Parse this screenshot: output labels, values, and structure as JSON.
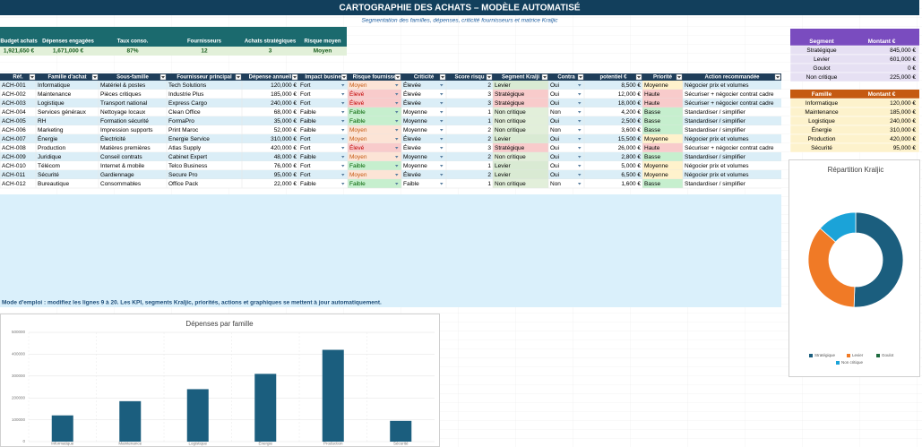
{
  "header": {
    "title": "CARTOGRAPHIE DES ACHATS – MODÈLE AUTOMATISÉ",
    "subtitle": "Segmentation des familles, dépenses, criticité fournisseurs et matrice Kraljic"
  },
  "kpis": {
    "headers": [
      "Budget achats",
      "Dépenses engagées",
      "Taux conso.",
      "Fournisseurs",
      "Achats stratégiques",
      "Risque moyen"
    ],
    "values": [
      "1,921,650 €",
      "1,671,000 €",
      "87%",
      "12",
      "3",
      "Moyen"
    ]
  },
  "main_table": {
    "headers": [
      "Réf.",
      "Famille d'achat",
      "Sous-famille",
      "Fournisseur principal",
      "Dépense annuell",
      "Impact busine",
      "Risque fournisse",
      "Criticité",
      "Score risqu",
      "Segment Kralji",
      "Contra",
      "potentiel €",
      "Priorité",
      "Action recommandée"
    ],
    "rows": [
      [
        "ACH-001",
        "Informatique",
        "Matériel & postes",
        "Tech Solutions",
        "120,000 €",
        "Fort",
        "Moyen",
        "Élevée",
        "2",
        "Levier",
        "Oui",
        "8,500 €",
        "Moyenne",
        "Négocier prix et volumes"
      ],
      [
        "ACH-002",
        "Maintenance",
        "Pièces critiques",
        "Industrie Plus",
        "185,000 €",
        "Fort",
        "Élevé",
        "Élevée",
        "3",
        "Stratégique",
        "Oui",
        "12,000 €",
        "Haute",
        "Sécuriser + négocier contrat cadre"
      ],
      [
        "ACH-003",
        "Logistique",
        "Transport national",
        "Express Cargo",
        "240,000 €",
        "Fort",
        "Élevé",
        "Élevée",
        "3",
        "Stratégique",
        "Oui",
        "18,000 €",
        "Haute",
        "Sécuriser + négocier contrat cadre"
      ],
      [
        "ACH-004",
        "Services généraux",
        "Nettoyage locaux",
        "Clean Office",
        "68,000 €",
        "Faible",
        "Faible",
        "Moyenne",
        "1",
        "Non critique",
        "Non",
        "4,200 €",
        "Basse",
        "Standardiser / simplifier"
      ],
      [
        "ACH-005",
        "RH",
        "Formation sécurité",
        "FormaPro",
        "35,000 €",
        "Faible",
        "Faible",
        "Moyenne",
        "1",
        "Non critique",
        "Oui",
        "2,500 €",
        "Basse",
        "Standardiser / simplifier"
      ],
      [
        "ACH-006",
        "Marketing",
        "Impression supports",
        "Print Maroc",
        "52,000 €",
        "Faible",
        "Moyen",
        "Moyenne",
        "2",
        "Non critique",
        "Non",
        "3,600 €",
        "Basse",
        "Standardiser / simplifier"
      ],
      [
        "ACH-007",
        "Énergie",
        "Électricité",
        "Energie Service",
        "310,000 €",
        "Fort",
        "Moyen",
        "Élevée",
        "2",
        "Levier",
        "Oui",
        "15,500 €",
        "Moyenne",
        "Négocier prix et volumes"
      ],
      [
        "ACH-008",
        "Production",
        "Matières premières",
        "Atlas Supply",
        "420,000 €",
        "Fort",
        "Élevé",
        "Élevée",
        "3",
        "Stratégique",
        "Oui",
        "26,000 €",
        "Haute",
        "Sécuriser + négocier contrat cadre"
      ],
      [
        "ACH-009",
        "Juridique",
        "Conseil contrats",
        "Cabinet Expert",
        "48,000 €",
        "Faible",
        "Moyen",
        "Moyenne",
        "2",
        "Non critique",
        "Oui",
        "2,800 €",
        "Basse",
        "Standardiser / simplifier"
      ],
      [
        "ACH-010",
        "Télécom",
        "Internet & mobile",
        "Telco Business",
        "76,000 €",
        "Fort",
        "Faible",
        "Moyenne",
        "1",
        "Levier",
        "Oui",
        "5,000 €",
        "Moyenne",
        "Négocier prix et volumes"
      ],
      [
        "ACH-011",
        "Sécurité",
        "Gardiennage",
        "Secure Pro",
        "95,000 €",
        "Fort",
        "Moyen",
        "Élevée",
        "2",
        "Levier",
        "Oui",
        "6,500 €",
        "Moyenne",
        "Négocier prix et volumes"
      ],
      [
        "ACH-012",
        "Bureautique",
        "Consommables",
        "Office Pack",
        "22,000 €",
        "Faible",
        "Faible",
        "Faible",
        "1",
        "Non critique",
        "Non",
        "1,600 €",
        "Basse",
        "Standardiser / simplifier"
      ]
    ],
    "highlight_columns": [
      6,
      9,
      12
    ],
    "highlight_fills": [
      [
        "#fce4d6",
        "#d9ead3",
        "#fff2cc"
      ],
      [
        "#f8cbcb",
        "#f8cbcb",
        "#f8cbcb"
      ],
      [
        "#f8cbcb",
        "#f8cbcb",
        "#f8cbcb"
      ],
      [
        "#c6efce",
        "#e2efda",
        "#c6efce"
      ],
      [
        "#c6efce",
        "#e2efda",
        "#c6efce"
      ],
      [
        "#fce4d6",
        "#e2efda",
        "#c6efce"
      ],
      [
        "#fce4d6",
        "#d9ead3",
        "#fff2cc"
      ],
      [
        "#f8cbcb",
        "#f8cbcb",
        "#f8cbcb"
      ],
      [
        "#fce4d6",
        "#e2efda",
        "#c6efce"
      ],
      [
        "#c6efce",
        "#d9ead3",
        "#fff2cc"
      ],
      [
        "#fce4d6",
        "#d9ead3",
        "#fff2cc"
      ],
      [
        "#c6efce",
        "#e2efda",
        "#c6efce"
      ]
    ]
  },
  "segment_table": {
    "headers": [
      "Segment",
      "Montant €"
    ],
    "rows": [
      [
        "Stratégique",
        "845,000 €"
      ],
      [
        "Levier",
        "601,000 €"
      ],
      [
        "Goulot",
        "0 €"
      ],
      [
        "Non critique",
        "225,000 €"
      ]
    ]
  },
  "family_table": {
    "headers": [
      "Famille",
      "Montant €"
    ],
    "rows": [
      [
        "Informatique",
        "120,000 €"
      ],
      [
        "Maintenance",
        "185,000 €"
      ],
      [
        "Logistique",
        "240,000 €"
      ],
      [
        "Énergie",
        "310,000 €"
      ],
      [
        "Production",
        "420,000 €"
      ],
      [
        "Sécurité",
        "95,000 €"
      ]
    ]
  },
  "note": "Mode d'emploi : modifiez les lignes 9 à 20. Les KPI, segments Kraljic, priorités, actions et graphiques se mettent à jour automatiquement.",
  "chart_data": [
    {
      "type": "bar",
      "title": "Dépenses par famille",
      "categories": [
        "Informatique",
        "Maintenance",
        "Logistique",
        "Énergie",
        "Production",
        "Sécurité"
      ],
      "values": [
        120000,
        185000,
        240000,
        310000,
        420000,
        95000
      ],
      "color": "#1b5e7e",
      "ylim": [
        0,
        500000
      ],
      "yticks": [
        0,
        100000,
        200000,
        300000,
        400000,
        500000
      ],
      "grid": true
    },
    {
      "type": "pie",
      "title": "Répartition Kraljic",
      "donut": true,
      "categories": [
        "Stratégique",
        "Levier",
        "Goulot",
        "Non critique"
      ],
      "values": [
        845000,
        601000,
        0,
        225000
      ],
      "colors": [
        "#1b5e7e",
        "#f07a26",
        "#1e6b3f",
        "#1ba3d8"
      ],
      "legend": "bottom"
    }
  ]
}
